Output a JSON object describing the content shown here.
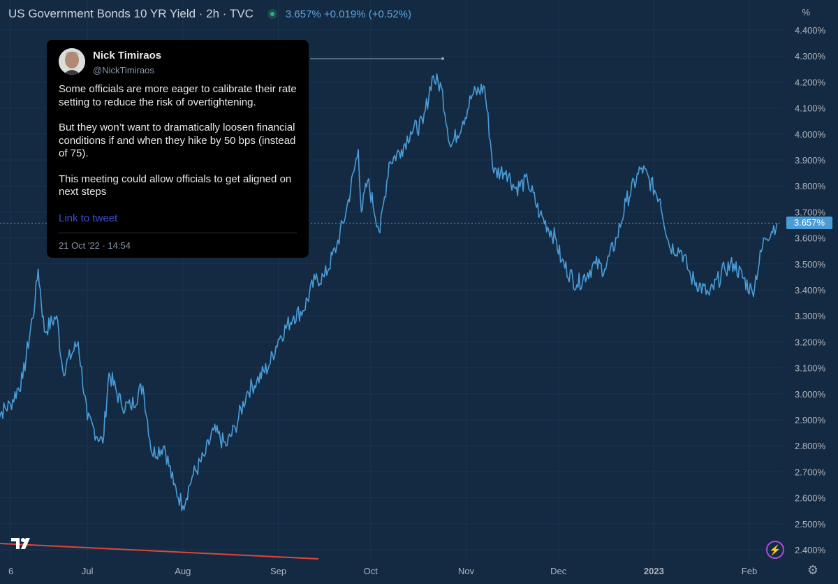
{
  "header": {
    "title": "US Government Bonds 10 YR Yield · 2h · TVC",
    "quote": "3.657% +0.019% (+0.52%)"
  },
  "axis": {
    "unit": "%",
    "current_price_label": "3.657%"
  },
  "tweet": {
    "author": "Nick Timiraos",
    "handle": "@NickTimiraos",
    "paragraphs": [
      "Some officials are more eager to calibrate their rate setting to reduce the risk of overtightening.",
      "But they won’t want to dramatically loosen financial conditions if and when they hike by 50 bps (instead of 75).",
      "This meeting could allow officials to get aligned on next steps"
    ],
    "link_label": "Link to tweet",
    "timestamp": "21 Oct '22 · 14:54"
  },
  "icons": {
    "logo": "tradingview-logo-icon",
    "alert": "flash-icon",
    "settings": "gear-icon"
  },
  "colors": {
    "background": "#132a42",
    "line": "#4a9cd8",
    "price_tag": "#4a9cd8",
    "bottom_indicator": "#e2453b"
  },
  "chart_data": {
    "type": "line",
    "title": "US Government Bonds 10 YR Yield · 2h · TVC",
    "xlabel": "",
    "ylabel": "%",
    "ylim": [
      2.35,
      4.45
    ],
    "y_ticks": [
      4.4,
      4.3,
      4.2,
      4.1,
      4.0,
      3.9,
      3.8,
      3.7,
      3.6,
      3.5,
      3.4,
      3.3,
      3.2,
      3.1,
      3.0,
      2.9,
      2.8,
      2.7,
      2.6,
      2.5,
      2.4
    ],
    "y_tick_labels": [
      "4.400%",
      "4.300%",
      "4.200%",
      "4.100%",
      "4.000%",
      "3.900%",
      "3.800%",
      "3.700%",
      "3.600%",
      "3.500%",
      "3.400%",
      "3.300%",
      "3.200%",
      "3.100%",
      "3.000%",
      "2.900%",
      "2.800%",
      "2.700%",
      "2.600%",
      "2.500%",
      "2.400%"
    ],
    "x_tick_labels": [
      "6",
      "Jul",
      "Aug",
      "Sep",
      "Oct",
      "Nov",
      "Dec",
      "2023",
      "Feb"
    ],
    "x_ticks": [
      "2022-06-06",
      "2022-07-01",
      "2022-08-01",
      "2022-09-01",
      "2022-10-01",
      "2022-11-01",
      "2022-12-01",
      "2023-01-01",
      "2023-02-01"
    ],
    "series": [
      {
        "x": [
          "2022-06-01",
          "2022-06-06",
          "2022-06-10",
          "2022-06-14",
          "2022-06-15",
          "2022-06-17",
          "2022-06-21",
          "2022-06-23",
          "2022-06-28",
          "2022-07-01",
          "2022-07-06",
          "2022-07-08",
          "2022-07-12",
          "2022-07-15",
          "2022-07-19",
          "2022-07-22",
          "2022-07-26",
          "2022-07-29",
          "2022-08-01",
          "2022-08-04",
          "2022-08-08",
          "2022-08-11",
          "2022-08-15",
          "2022-08-18",
          "2022-08-22",
          "2022-08-25",
          "2022-08-29",
          "2022-09-01",
          "2022-09-06",
          "2022-09-09",
          "2022-09-13",
          "2022-09-16",
          "2022-09-20",
          "2022-09-23",
          "2022-09-27",
          "2022-09-28",
          "2022-09-30",
          "2022-10-04",
          "2022-10-07",
          "2022-10-11",
          "2022-10-14",
          "2022-10-18",
          "2022-10-21",
          "2022-10-24",
          "2022-10-27",
          "2022-10-31",
          "2022-11-03",
          "2022-11-07",
          "2022-11-10",
          "2022-11-14",
          "2022-11-17",
          "2022-11-21",
          "2022-11-25",
          "2022-11-30",
          "2022-12-02",
          "2022-12-07",
          "2022-12-13",
          "2022-12-16",
          "2022-12-20",
          "2022-12-23",
          "2022-12-28",
          "2023-01-03",
          "2023-01-06",
          "2023-01-10",
          "2023-01-13",
          "2023-01-19",
          "2023-01-24",
          "2023-01-27",
          "2023-02-02",
          "2023-02-06",
          "2023-02-10"
        ],
        "y": [
          2.91,
          2.96,
          3.06,
          3.36,
          3.48,
          3.24,
          3.3,
          3.09,
          3.2,
          2.9,
          2.81,
          3.08,
          2.96,
          2.95,
          3.03,
          2.77,
          2.8,
          2.65,
          2.57,
          2.68,
          2.76,
          2.86,
          2.8,
          2.87,
          3.01,
          3.05,
          3.11,
          3.21,
          3.3,
          3.32,
          3.44,
          3.45,
          3.57,
          3.7,
          3.94,
          3.7,
          3.82,
          3.62,
          3.89,
          3.94,
          4.01,
          4.04,
          4.22,
          4.18,
          3.95,
          4.05,
          4.15,
          4.18,
          3.85,
          3.86,
          3.79,
          3.82,
          3.69,
          3.6,
          3.51,
          3.42,
          3.5,
          3.48,
          3.6,
          3.74,
          3.87,
          3.75,
          3.57,
          3.55,
          3.45,
          3.38,
          3.48,
          3.5,
          3.39,
          3.6,
          3.657
        ]
      }
    ],
    "current_value": 3.657,
    "annotation_marker_value": 4.29
  }
}
